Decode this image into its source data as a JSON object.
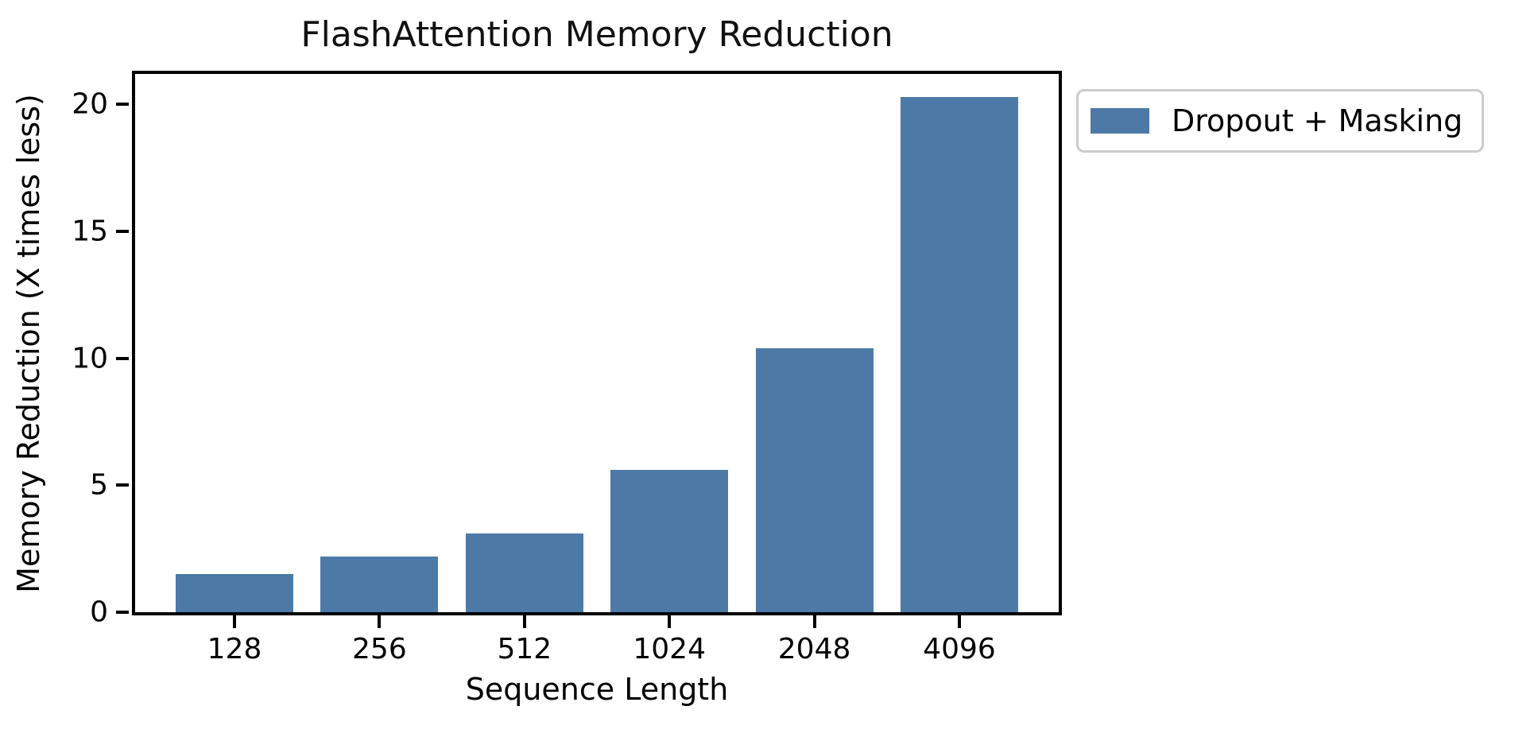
{
  "chart_data": {
    "type": "bar",
    "title": "FlashAttention Memory Reduction",
    "xlabel": "Sequence Length",
    "ylabel": "Memory Reduction (X times less)",
    "categories": [
      "128",
      "256",
      "512",
      "1024",
      "2048",
      "4096"
    ],
    "series": [
      {
        "name": "Dropout + Masking",
        "values": [
          1.5,
          2.2,
          3.1,
          5.6,
          10.4,
          20.3
        ]
      }
    ],
    "ylim": [
      0,
      21.2
    ],
    "yticks": [
      0,
      5,
      10,
      15,
      20
    ],
    "grid": false,
    "legend_position": "outside-upper-right",
    "colors": {
      "bar": "#4d79a7",
      "spine": "#000000",
      "text": "#000000",
      "legend_border": "#cccccc",
      "background": "#ffffff"
    }
  }
}
